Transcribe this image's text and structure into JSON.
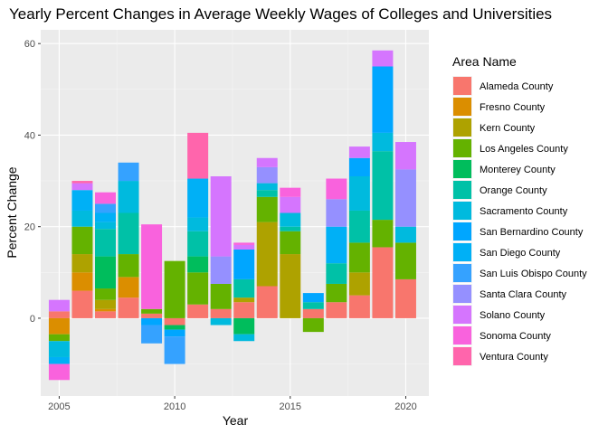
{
  "chart_data": {
    "type": "bar",
    "stacked": true,
    "title": "Yearly Percent Changes in Average Weekly Wages of Colleges and Universities",
    "xlabel": "Year",
    "ylabel": "Percent Change",
    "xlim": [
      2004.2,
      2021.0
    ],
    "ylim": [
      -17,
      63
    ],
    "x_ticks": [
      2005,
      2010,
      2015,
      2020
    ],
    "y_ticks": [
      0,
      20,
      40,
      60
    ],
    "grid": true,
    "legend_position": "right",
    "legend_title": "Area Name",
    "series": [
      {
        "name": "Alameda County",
        "color": "#F8766D",
        "values": [
          1.5,
          6.0,
          1.5,
          4.5,
          1.0,
          -1.5,
          3.0,
          2.0,
          3.5,
          7.0,
          2.0,
          3.5,
          5.0,
          15.5,
          8.5
        ]
      },
      {
        "name": "Fresno County",
        "color": "#DB8E00",
        "values": [
          -3.5,
          4.0,
          0.5,
          4.5,
          0.0,
          0.0,
          0.0,
          0.0,
          0.0,
          0.0,
          0.0,
          0.0,
          0.0,
          0.0,
          0.0
        ]
      },
      {
        "name": "Kern County",
        "color": "#AEA200",
        "values": [
          0.0,
          4.0,
          2.0,
          0.0,
          0.0,
          0.0,
          0.0,
          0.0,
          1.0,
          14.0,
          0.0,
          0.0,
          5.0,
          0.0,
          0.0
        ]
      },
      {
        "name": "Los Angeles County",
        "color": "#64B200",
        "values": [
          -1.5,
          6.0,
          2.5,
          5.0,
          1.0,
          12.5,
          7.0,
          5.5,
          0.0,
          5.5,
          -3.0,
          4.0,
          6.5,
          6.0,
          8.0
        ]
      },
      {
        "name": "Monterey County",
        "color": "#00BD5C",
        "values": [
          0.0,
          0.0,
          7.0,
          0.0,
          0.0,
          -1.0,
          3.5,
          0.0,
          -3.5,
          0.0,
          0.0,
          0.0,
          0.0,
          0.0,
          0.0
        ]
      },
      {
        "name": "Orange County",
        "color": "#00C1A7",
        "values": [
          0.0,
          0.0,
          6.0,
          9.0,
          0.0,
          0.0,
          5.5,
          0.0,
          4.0,
          1.5,
          1.5,
          4.5,
          7.0,
          15.0,
          0.0
        ]
      },
      {
        "name": "Sacramento County",
        "color": "#00BADE",
        "values": [
          -3.5,
          3.5,
          1.5,
          7.0,
          0.0,
          0.0,
          3.0,
          -1.5,
          -1.5,
          1.5,
          0.0,
          0.0,
          7.5,
          4.0,
          3.5
        ]
      },
      {
        "name": "San Bernardino County",
        "color": "#00A6FF",
        "values": [
          0.0,
          0.0,
          0.0,
          0.0,
          -1.5,
          -1.5,
          0.0,
          0.0,
          6.5,
          0.0,
          2.0,
          0.0,
          4.0,
          14.5,
          0.0
        ]
      },
      {
        "name": "San Diego County",
        "color": "#00B0F6",
        "values": [
          -1.5,
          4.5,
          2.0,
          0.0,
          0.0,
          0.0,
          8.5,
          0.0,
          0.0,
          0.0,
          0.0,
          8.0,
          0.0,
          0.0,
          0.0
        ]
      },
      {
        "name": "San Luis Obispo County",
        "color": "#35A2FF",
        "values": [
          0.0,
          0.0,
          2.0,
          4.0,
          -4.0,
          -6.0,
          0.0,
          0.0,
          0.0,
          0.0,
          0.0,
          0.0,
          0.0,
          0.0,
          0.0
        ]
      },
      {
        "name": "Santa Clara County",
        "color": "#9590FF",
        "values": [
          0.0,
          0.0,
          0.0,
          0.0,
          0.0,
          0.0,
          0.0,
          6.0,
          0.0,
          3.5,
          0.0,
          6.0,
          0.0,
          0.0,
          12.5
        ]
      },
      {
        "name": "Solano County",
        "color": "#D575FE",
        "values": [
          2.5,
          1.5,
          0.0,
          0.0,
          0.0,
          0.0,
          0.0,
          17.5,
          1.0,
          2.0,
          0.0,
          0.0,
          2.5,
          3.5,
          6.0
        ]
      },
      {
        "name": "Sonoma County",
        "color": "#F962DD",
        "values": [
          -3.5,
          0.0,
          2.5,
          0.0,
          18.5,
          0.0,
          0.0,
          0.0,
          0.5,
          0.0,
          0.0,
          4.5,
          0.0,
          0.0,
          0.0
        ]
      },
      {
        "name": "Ventura County",
        "color": "#FF65AC",
        "values": [
          0.0,
          0.5,
          0.0,
          0.0,
          0.0,
          0.0,
          10.0,
          0.0,
          0.0,
          0.0,
          0.0,
          0.0,
          0.0,
          0.0,
          0.0
        ]
      }
    ],
    "x": [
      2005,
      2006,
      2007,
      2008,
      2009,
      2010,
      2011,
      2012,
      2013,
      2014,
      2016,
      2017,
      2018,
      2019,
      2020
    ],
    "extra_bar": {
      "x": 2015,
      "values": {
        "Alameda County": 0.0,
        "Kern County": 14.0,
        "Los Angeles County": 5.0,
        "Monterey County": 0.0,
        "Orange County": 1.0,
        "Sacramento County": 3.0,
        "Solano County": 3.5,
        "Sonoma County": 2.0
      }
    }
  }
}
